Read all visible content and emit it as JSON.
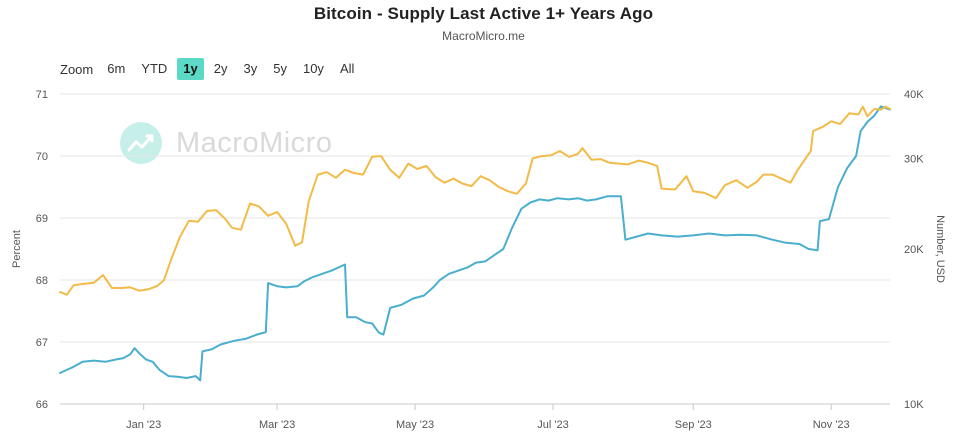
{
  "title": "Bitcoin - Supply Last Active 1+ Years Ago",
  "subtitle": "MacroMicro.me",
  "watermark": "MacroMicro",
  "range_selector": {
    "zoom_label": "Zoom",
    "buttons": [
      "6m",
      "YTD",
      "1y",
      "2y",
      "3y",
      "5y",
      "10y",
      "All"
    ],
    "selected": "1y"
  },
  "colors": {
    "percent": "#4aaecf",
    "price": "#f2bb48",
    "grid": "#e6e6e6",
    "accent": "#5bd8c6"
  },
  "chart_data": {
    "type": "line",
    "x_ticks": [
      "Jan '23",
      "Mar '23",
      "May '23",
      "Jul '23",
      "Sep '23",
      "Nov '23"
    ],
    "x_range": [
      "2022-11-25",
      "2023-11-27"
    ],
    "y_left": {
      "label": "Percent",
      "ticks": [
        "66",
        "67",
        "68",
        "69",
        "70",
        "71"
      ],
      "min": 66,
      "max": 71
    },
    "y_right": {
      "label": "Number, USD",
      "scale": "log",
      "ticks": [
        "10K",
        "20K",
        "30K",
        "40K"
      ],
      "min": 10000,
      "max": 40000
    },
    "grid": true,
    "series": [
      {
        "axis": "left",
        "points": [
          [
            "2022-11-25",
            66.5
          ],
          [
            "2022-11-28",
            66.55
          ],
          [
            "2022-12-01",
            66.6
          ],
          [
            "2022-12-05",
            66.68
          ],
          [
            "2022-12-10",
            66.7
          ],
          [
            "2022-12-15",
            66.68
          ],
          [
            "2022-12-20",
            66.72
          ],
          [
            "2022-12-23",
            66.74
          ],
          [
            "2022-12-26",
            66.8
          ],
          [
            "2022-12-28",
            66.9
          ],
          [
            "2022-12-30",
            66.82
          ],
          [
            "2023-01-02",
            66.72
          ],
          [
            "2023-01-05",
            66.68
          ],
          [
            "2023-01-08",
            66.55
          ],
          [
            "2023-01-12",
            66.45
          ],
          [
            "2023-01-16",
            66.44
          ],
          [
            "2023-01-20",
            66.42
          ],
          [
            "2023-01-24",
            66.45
          ],
          [
            "2023-01-26",
            66.38
          ],
          [
            "2023-01-27",
            66.85
          ],
          [
            "2023-01-31",
            66.88
          ],
          [
            "2023-02-04",
            66.96
          ],
          [
            "2023-02-10",
            67.02
          ],
          [
            "2023-02-15",
            67.05
          ],
          [
            "2023-02-20",
            67.12
          ],
          [
            "2023-02-24",
            67.16
          ],
          [
            "2023-02-25",
            67.95
          ],
          [
            "2023-03-01",
            67.9
          ],
          [
            "2023-03-05",
            67.88
          ],
          [
            "2023-03-10",
            67.9
          ],
          [
            "2023-03-13",
            67.98
          ],
          [
            "2023-03-17",
            68.05
          ],
          [
            "2023-03-21",
            68.1
          ],
          [
            "2023-03-25",
            68.15
          ],
          [
            "2023-03-28",
            68.2
          ],
          [
            "2023-03-31",
            68.25
          ],
          [
            "2023-04-01",
            67.4
          ],
          [
            "2023-04-05",
            67.4
          ],
          [
            "2023-04-09",
            67.32
          ],
          [
            "2023-04-12",
            67.3
          ],
          [
            "2023-04-15",
            67.15
          ],
          [
            "2023-04-17",
            67.12
          ],
          [
            "2023-04-20",
            67.55
          ],
          [
            "2023-04-25",
            67.6
          ],
          [
            "2023-04-30",
            67.7
          ],
          [
            "2023-05-05",
            67.75
          ],
          [
            "2023-05-09",
            67.88
          ],
          [
            "2023-05-12",
            68.0
          ],
          [
            "2023-05-16",
            68.1
          ],
          [
            "2023-05-20",
            68.15
          ],
          [
            "2023-05-24",
            68.2
          ],
          [
            "2023-05-28",
            68.28
          ],
          [
            "2023-06-01",
            68.3
          ],
          [
            "2023-06-05",
            68.4
          ],
          [
            "2023-06-09",
            68.5
          ],
          [
            "2023-06-13",
            68.85
          ],
          [
            "2023-06-17",
            69.15
          ],
          [
            "2023-06-21",
            69.25
          ],
          [
            "2023-06-25",
            69.3
          ],
          [
            "2023-06-29",
            69.28
          ],
          [
            "2023-07-03",
            69.32
          ],
          [
            "2023-07-08",
            69.3
          ],
          [
            "2023-07-12",
            69.32
          ],
          [
            "2023-07-16",
            69.28
          ],
          [
            "2023-07-20",
            69.3
          ],
          [
            "2023-07-25",
            69.35
          ],
          [
            "2023-07-31",
            69.35
          ],
          [
            "2023-08-02",
            68.65
          ],
          [
            "2023-08-07",
            68.7
          ],
          [
            "2023-08-12",
            68.75
          ],
          [
            "2023-08-18",
            68.72
          ],
          [
            "2023-08-25",
            68.7
          ],
          [
            "2023-09-01",
            68.72
          ],
          [
            "2023-09-08",
            68.75
          ],
          [
            "2023-09-15",
            68.72
          ],
          [
            "2023-09-22",
            68.73
          ],
          [
            "2023-09-29",
            68.72
          ],
          [
            "2023-10-06",
            68.65
          ],
          [
            "2023-10-12",
            68.6
          ],
          [
            "2023-10-18",
            68.58
          ],
          [
            "2023-10-22",
            68.5
          ],
          [
            "2023-10-26",
            68.48
          ],
          [
            "2023-10-27",
            68.95
          ],
          [
            "2023-10-31",
            68.98
          ],
          [
            "2023-11-04",
            69.5
          ],
          [
            "2023-11-08",
            69.8
          ],
          [
            "2023-11-12",
            70.0
          ],
          [
            "2023-11-14",
            70.4
          ],
          [
            "2023-11-17",
            70.55
          ],
          [
            "2023-11-20",
            70.65
          ],
          [
            "2023-11-23",
            70.8
          ],
          [
            "2023-11-27",
            70.75
          ]
        ]
      },
      {
        "axis": "right",
        "points": [
          [
            "2022-11-25",
            16500
          ],
          [
            "2022-11-28",
            16300
          ],
          [
            "2022-12-01",
            17000
          ],
          [
            "2022-12-05",
            17100
          ],
          [
            "2022-12-10",
            17200
          ],
          [
            "2022-12-14",
            17800
          ],
          [
            "2022-12-18",
            16800
          ],
          [
            "2022-12-22",
            16800
          ],
          [
            "2022-12-26",
            16850
          ],
          [
            "2022-12-30",
            16600
          ],
          [
            "2023-01-03",
            16700
          ],
          [
            "2023-01-07",
            16950
          ],
          [
            "2023-01-10",
            17400
          ],
          [
            "2023-01-13",
            19000
          ],
          [
            "2023-01-17",
            21100
          ],
          [
            "2023-01-21",
            22700
          ],
          [
            "2023-01-25",
            22600
          ],
          [
            "2023-01-29",
            23700
          ],
          [
            "2023-02-02",
            23800
          ],
          [
            "2023-02-06",
            22900
          ],
          [
            "2023-02-09",
            22000
          ],
          [
            "2023-02-13",
            21800
          ],
          [
            "2023-02-17",
            24500
          ],
          [
            "2023-02-21",
            24200
          ],
          [
            "2023-02-25",
            23200
          ],
          [
            "2023-03-01",
            23600
          ],
          [
            "2023-03-05",
            22400
          ],
          [
            "2023-03-09",
            20300
          ],
          [
            "2023-03-12",
            20600
          ],
          [
            "2023-03-15",
            24800
          ],
          [
            "2023-03-19",
            27900
          ],
          [
            "2023-03-23",
            28200
          ],
          [
            "2023-03-27",
            27500
          ],
          [
            "2023-03-31",
            28500
          ],
          [
            "2023-04-04",
            28100
          ],
          [
            "2023-04-08",
            27900
          ],
          [
            "2023-04-12",
            30200
          ],
          [
            "2023-04-16",
            30300
          ],
          [
            "2023-04-20",
            28500
          ],
          [
            "2023-04-24",
            27500
          ],
          [
            "2023-04-28",
            29300
          ],
          [
            "2023-05-02",
            28600
          ],
          [
            "2023-05-06",
            29000
          ],
          [
            "2023-05-10",
            27600
          ],
          [
            "2023-05-14",
            26900
          ],
          [
            "2023-05-18",
            27400
          ],
          [
            "2023-05-22",
            26800
          ],
          [
            "2023-05-26",
            26500
          ],
          [
            "2023-05-30",
            27700
          ],
          [
            "2023-06-03",
            27200
          ],
          [
            "2023-06-07",
            26400
          ],
          [
            "2023-06-11",
            25900
          ],
          [
            "2023-06-15",
            25600
          ],
          [
            "2023-06-19",
            26800
          ],
          [
            "2023-06-22",
            30000
          ],
          [
            "2023-06-26",
            30300
          ],
          [
            "2023-06-30",
            30400
          ],
          [
            "2023-07-04",
            31000
          ],
          [
            "2023-07-08",
            30200
          ],
          [
            "2023-07-12",
            30600
          ],
          [
            "2023-07-14",
            31400
          ],
          [
            "2023-07-18",
            29800
          ],
          [
            "2023-07-22",
            29900
          ],
          [
            "2023-07-26",
            29400
          ],
          [
            "2023-07-30",
            29300
          ],
          [
            "2023-08-03",
            29200
          ],
          [
            "2023-08-08",
            29700
          ],
          [
            "2023-08-12",
            29400
          ],
          [
            "2023-08-16",
            29000
          ],
          [
            "2023-08-18",
            26200
          ],
          [
            "2023-08-24",
            26100
          ],
          [
            "2023-08-29",
            27700
          ],
          [
            "2023-09-01",
            25900
          ],
          [
            "2023-09-06",
            25700
          ],
          [
            "2023-09-11",
            25100
          ],
          [
            "2023-09-15",
            26600
          ],
          [
            "2023-09-20",
            27200
          ],
          [
            "2023-09-25",
            26300
          ],
          [
            "2023-09-29",
            27000
          ],
          [
            "2023-10-02",
            27900
          ],
          [
            "2023-10-06",
            27900
          ],
          [
            "2023-10-10",
            27400
          ],
          [
            "2023-10-14",
            26900
          ],
          [
            "2023-10-17",
            28400
          ],
          [
            "2023-10-20",
            29700
          ],
          [
            "2023-10-23",
            31000
          ],
          [
            "2023-10-24",
            33900
          ],
          [
            "2023-10-28",
            34500
          ],
          [
            "2023-11-01",
            35400
          ],
          [
            "2023-11-05",
            35000
          ],
          [
            "2023-11-09",
            36700
          ],
          [
            "2023-11-13",
            36500
          ],
          [
            "2023-11-15",
            37800
          ],
          [
            "2023-11-17",
            36200
          ],
          [
            "2023-11-20",
            37400
          ],
          [
            "2023-11-23",
            37300
          ],
          [
            "2023-11-25",
            37800
          ],
          [
            "2023-11-27",
            37400
          ]
        ]
      }
    ]
  }
}
